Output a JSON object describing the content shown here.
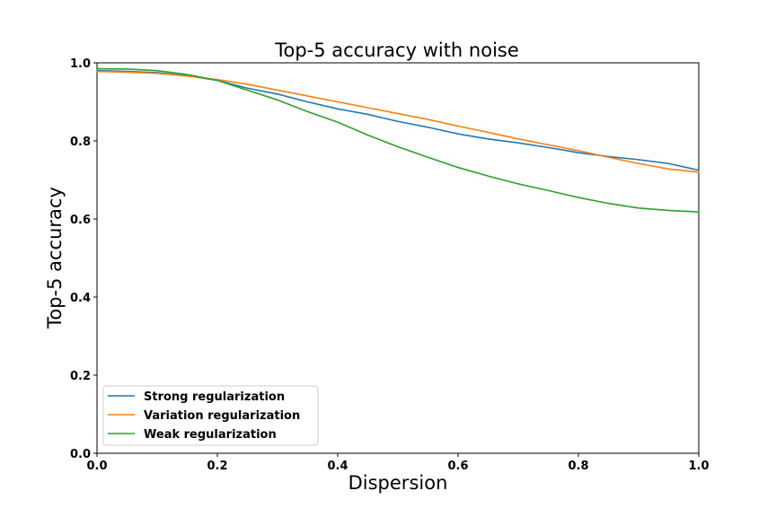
{
  "chart_data": {
    "type": "line",
    "title": "Top-5 accuracy with noise",
    "xlabel": "Dispersion",
    "ylabel": "Top-5 accuracy",
    "xlim": [
      0,
      1
    ],
    "ylim": [
      0,
      1
    ],
    "xticks": [
      "0.0",
      "0.2",
      "0.4",
      "0.6",
      "0.8",
      "1.0"
    ],
    "yticks": [
      "0.0",
      "0.2",
      "0.4",
      "0.6",
      "0.8",
      "1.0"
    ],
    "grid": false,
    "legend_position": "lower-left",
    "x": [
      0.0,
      0.05,
      0.1,
      0.15,
      0.2,
      0.25,
      0.3,
      0.35,
      0.4,
      0.45,
      0.5,
      0.55,
      0.6,
      0.65,
      0.7,
      0.75,
      0.8,
      0.85,
      0.9,
      0.95,
      1.0
    ],
    "series": [
      {
        "name": "Strong regularization",
        "color": "#1f77b4",
        "values": [
          0.98,
          0.978,
          0.975,
          0.967,
          0.955,
          0.935,
          0.92,
          0.9,
          0.882,
          0.868,
          0.85,
          0.835,
          0.818,
          0.805,
          0.795,
          0.783,
          0.77,
          0.76,
          0.752,
          0.742,
          0.725
        ]
      },
      {
        "name": "Variation regularization",
        "color": "#ff7f0e",
        "values": [
          0.978,
          0.976,
          0.973,
          0.966,
          0.957,
          0.945,
          0.93,
          0.915,
          0.9,
          0.885,
          0.87,
          0.855,
          0.838,
          0.822,
          0.805,
          0.79,
          0.775,
          0.758,
          0.742,
          0.728,
          0.72
        ]
      },
      {
        "name": "Weak regularization",
        "color": "#2ca02c",
        "values": [
          0.985,
          0.984,
          0.98,
          0.97,
          0.955,
          0.93,
          0.905,
          0.875,
          0.848,
          0.815,
          0.785,
          0.758,
          0.732,
          0.71,
          0.69,
          0.673,
          0.655,
          0.64,
          0.628,
          0.622,
          0.618
        ]
      }
    ]
  }
}
